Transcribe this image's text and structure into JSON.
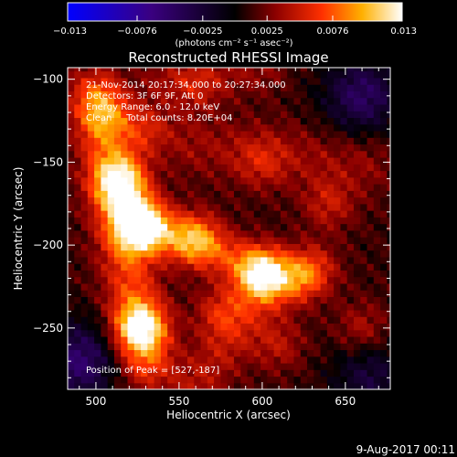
{
  "chart_data": {
    "type": "heatmap",
    "title": "Reconstructed RHESSI Image",
    "xlabel": "Heliocentric X (arcsec)",
    "ylabel": "Heliocentric Y (arcsec)",
    "xlim": [
      483,
      677
    ],
    "ylim": [
      -287,
      -93
    ],
    "x_ticks": [
      500,
      550,
      600,
      650
    ],
    "y_ticks": [
      -250,
      -200,
      -150,
      -100
    ],
    "x_tick_labels": [
      "500",
      "550",
      "600",
      "650"
    ],
    "y_tick_labels": [
      "−250",
      "−200",
      "−150",
      "−100"
    ],
    "colorbar": {
      "range": [
        -0.013,
        0.013
      ],
      "ticks": [
        -0.013,
        -0.0076,
        -0.0025,
        0.0025,
        0.0076,
        0.013
      ],
      "tick_labels": [
        "−0.013",
        "−0.0076",
        "−0.0025",
        "0.0025",
        "0.0076",
        "0.013"
      ],
      "unit_label": "(photons cm⁻² s⁻¹ asec⁻²)",
      "colormap": [
        "#0000ff",
        "#3a0080",
        "#000000",
        "#8b0000",
        "#ff3000",
        "#ffb000",
        "#ffffff"
      ]
    },
    "annotations": [
      "21-Nov-2014 20:17:34.000 to 20:27:34.000",
      "Detectors: 3F 6F 9F, Att 0",
      "Energy Range: 6.0 - 12.0 keV",
      "Clean     Total counts: 8.20E+04"
    ],
    "peak_label": "Position of Peak = [527,-187]",
    "peak": [
      527,
      -187
    ],
    "sources": [
      {
        "x": 527,
        "y": -187,
        "value": 0.013
      },
      {
        "x": 515,
        "y": -162,
        "value": 0.011
      },
      {
        "x": 527,
        "y": -250,
        "value": 0.0105
      },
      {
        "x": 600,
        "y": -218,
        "value": 0.0098
      },
      {
        "x": 560,
        "y": -195,
        "value": 0.007
      },
      {
        "x": 505,
        "y": -120,
        "value": 0.005
      },
      {
        "x": 530,
        "y": -130,
        "value": 0.0045
      },
      {
        "x": 575,
        "y": -240,
        "value": 0.0045
      },
      {
        "x": 630,
        "y": -215,
        "value": 0.0055
      },
      {
        "x": 640,
        "y": -175,
        "value": 0.004
      },
      {
        "x": 610,
        "y": -260,
        "value": 0.0035
      },
      {
        "x": 660,
        "y": -250,
        "value": 0.0035
      },
      {
        "x": 560,
        "y": -105,
        "value": 0.003
      },
      {
        "x": 600,
        "y": -150,
        "value": 0.003
      },
      {
        "x": 660,
        "y": -110,
        "value": -0.0045
      },
      {
        "x": 490,
        "y": -270,
        "value": -0.005
      },
      {
        "x": 665,
        "y": -280,
        "value": -0.003
      }
    ]
  },
  "footer": {
    "date": "9-Aug-2017 00:11"
  }
}
